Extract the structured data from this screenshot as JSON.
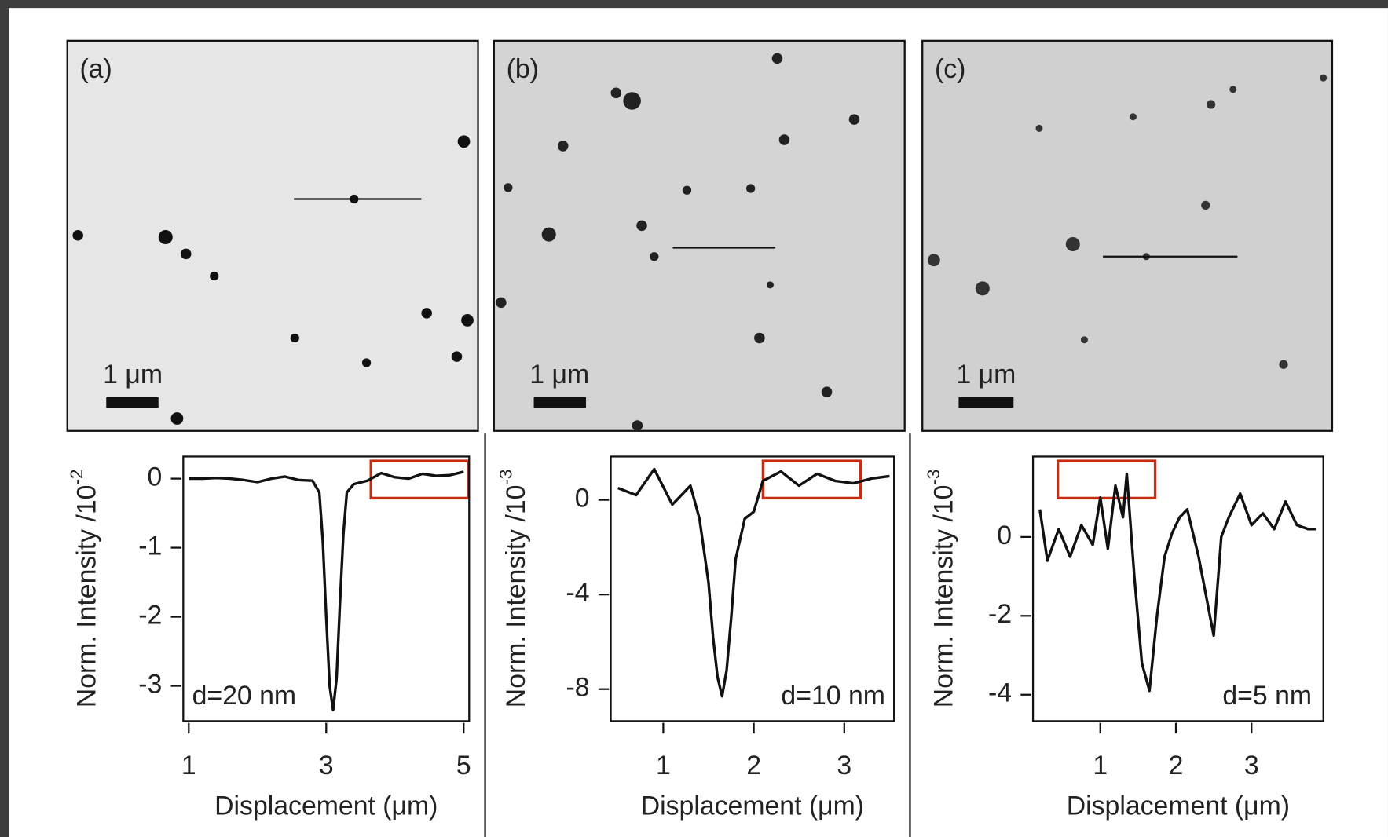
{
  "chart_data": [
    {
      "type": "line",
      "label": "(a)",
      "scale_bar": "1 μm",
      "annotation": "d=20 nm",
      "xlabel": "Displacement (μm)",
      "ylabel": "Norm. Intensity /10",
      "ylabel_exponent": "-2",
      "xlim": [
        0.92,
        5.08
      ],
      "xticks": [
        1,
        3,
        5
      ],
      "ylim": [
        -3.51,
        0.32
      ],
      "yticks": [
        0,
        -1,
        -2,
        -3
      ],
      "color": "#111111",
      "x": [
        1.0,
        1.2,
        1.4,
        1.6,
        1.8,
        2.0,
        2.2,
        2.4,
        2.6,
        2.8,
        2.9,
        2.95,
        3.0,
        3.05,
        3.1,
        3.15,
        3.2,
        3.25,
        3.3,
        3.4,
        3.6,
        3.8,
        4.0,
        4.2,
        4.4,
        4.6,
        4.8,
        5.0
      ],
      "values": [
        0,
        0,
        0.01,
        0,
        -0.02,
        -0.05,
        0,
        0.03,
        -0.02,
        -0.03,
        -0.2,
        -0.9,
        -2.0,
        -3.0,
        -3.35,
        -2.9,
        -1.8,
        -0.8,
        -0.2,
        -0.08,
        -0.03,
        0.08,
        0.02,
        0,
        0.07,
        0.04,
        0.05,
        0.1
      ]
    },
    {
      "type": "line",
      "label": "(b)",
      "scale_bar": "1 μm",
      "annotation": "d=10 nm",
      "xlabel": "Displacement (μm)",
      "ylabel": "Norm. Intensity /10",
      "ylabel_exponent": "-3",
      "xlim": [
        0.42,
        3.55
      ],
      "xticks": [
        1,
        2,
        3
      ],
      "ylim": [
        -9.35,
        1.83
      ],
      "yticks": [
        0,
        -4,
        -8
      ],
      "color": "#111111",
      "x": [
        0.5,
        0.7,
        0.9,
        1.1,
        1.3,
        1.4,
        1.5,
        1.55,
        1.6,
        1.65,
        1.7,
        1.75,
        1.8,
        1.9,
        2.0,
        2.1,
        2.3,
        2.5,
        2.7,
        2.9,
        3.1,
        3.3,
        3.5
      ],
      "values": [
        0.5,
        0.2,
        1.3,
        -0.2,
        0.6,
        -0.8,
        -3.5,
        -5.8,
        -7.5,
        -8.3,
        -7.2,
        -5.0,
        -2.5,
        -0.8,
        -0.5,
        0.8,
        1.2,
        0.6,
        1.1,
        0.8,
        0.7,
        0.9,
        1.0
      ]
    },
    {
      "type": "line",
      "label": "(c)",
      "scale_bar": "1 μm",
      "annotation": "d=5 nm",
      "xlabel": "Displacement (μm)",
      "ylabel": "Norm. Intensity /10",
      "ylabel_exponent": "-3",
      "xlim": [
        0.11,
        3.95
      ],
      "xticks": [
        1,
        2,
        3
      ],
      "ylim": [
        -4.67,
        2.04
      ],
      "yticks": [
        0,
        -2,
        -4
      ],
      "color": "#111111",
      "x": [
        0.2,
        0.3,
        0.45,
        0.6,
        0.75,
        0.9,
        1.0,
        1.1,
        1.2,
        1.3,
        1.35,
        1.45,
        1.55,
        1.65,
        1.75,
        1.85,
        1.95,
        2.05,
        2.15,
        2.3,
        2.4,
        2.5,
        2.6,
        2.7,
        2.85,
        3.0,
        3.15,
        3.3,
        3.45,
        3.6,
        3.75,
        3.85
      ],
      "values": [
        0.7,
        -0.6,
        0.2,
        -0.5,
        0.3,
        -0.2,
        1.0,
        -0.3,
        1.3,
        0.5,
        1.6,
        -1.0,
        -3.2,
        -3.9,
        -2.0,
        -0.5,
        0.1,
        0.5,
        0.7,
        -0.5,
        -1.5,
        -2.5,
        0.0,
        0.5,
        1.1,
        0.3,
        0.6,
        0.2,
        0.9,
        0.3,
        0.2,
        0.2
      ]
    }
  ]
}
